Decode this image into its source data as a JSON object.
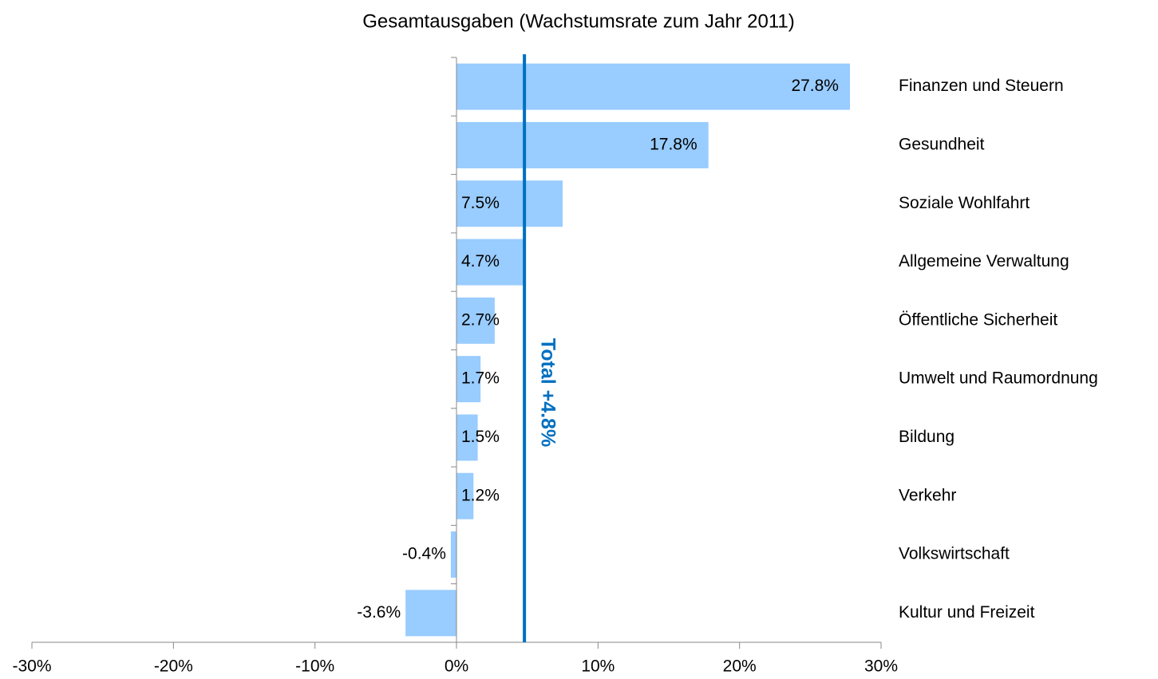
{
  "chart_data": {
    "type": "bar",
    "orientation": "horizontal",
    "title": "Gesamtausgaben (Wachstumsrate zum Jahr 2011)",
    "categories": [
      "Finanzen und Steuern",
      "Gesundheit",
      "Soziale Wohlfahrt",
      "Allgemeine Verwaltung",
      "Öffentliche Sicherheit",
      "Umwelt und Raumordnung",
      "Bildung",
      "Verkehr",
      "Volkswirtschaft",
      "Kultur und Freizeit"
    ],
    "values": [
      27.8,
      17.8,
      7.5,
      4.7,
      2.7,
      1.7,
      1.5,
      1.2,
      -0.4,
      -3.6
    ],
    "value_labels": [
      "27.8%",
      "17.8%",
      "7.5%",
      "4.7%",
      "2.7%",
      "1.7%",
      "1.5%",
      "1.2%",
      "-0.4%",
      "-3.6%"
    ],
    "color": "#99ccff",
    "xlim": [
      -30,
      30
    ],
    "xticks": [
      {
        "value": -30,
        "label": "-30%"
      },
      {
        "value": -20,
        "label": "-20%"
      },
      {
        "value": -10,
        "label": "-10%"
      },
      {
        "value": 0,
        "label": "0%"
      },
      {
        "value": 10,
        "label": "10%"
      },
      {
        "value": 20,
        "label": "20%"
      },
      {
        "value": 30,
        "label": "30%"
      }
    ],
    "reference_line": {
      "value": 4.8,
      "label": "Total +4.8%",
      "color": "#0070c0"
    }
  }
}
